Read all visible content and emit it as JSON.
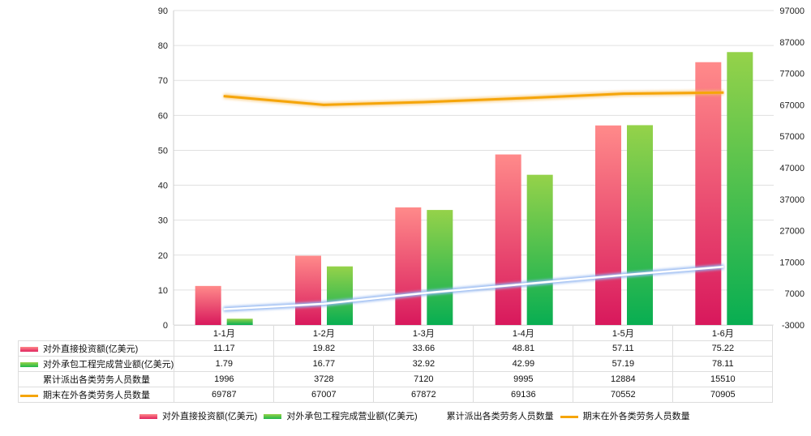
{
  "chart_data": {
    "type": "bar",
    "categories": [
      "1-1月",
      "1-2月",
      "1-3月",
      "1-4月",
      "1-5月",
      "1-6月"
    ],
    "series": [
      {
        "name": "对外直接投资额(亿美元)",
        "kind": "bar",
        "axis": "left",
        "color": "#e8476e",
        "values": [
          11.17,
          19.82,
          33.66,
          48.81,
          57.11,
          75.22
        ]
      },
      {
        "name": "对外承包工程完成营业额(亿美元)",
        "kind": "bar",
        "axis": "left",
        "color": "#4cc04a",
        "values": [
          1.79,
          16.77,
          32.92,
          42.99,
          57.19,
          78.11
        ]
      },
      {
        "name": "累计派出各类劳务人员数量",
        "kind": "line",
        "axis": "right",
        "color": "#ffffff",
        "glow": "#8fb4f0",
        "values": [
          1996,
          3728,
          7120,
          9995,
          12884,
          15510
        ]
      },
      {
        "name": "期末在外各类劳务人员数量",
        "kind": "line",
        "axis": "right",
        "color": "#f5a50a",
        "values": [
          69787,
          67007,
          67872,
          69136,
          70552,
          70905
        ]
      }
    ],
    "y_left": {
      "ylim": [
        0,
        90
      ],
      "ticks": [
        "0",
        "10",
        "20",
        "30",
        "40",
        "50",
        "60",
        "70",
        "80",
        "90"
      ]
    },
    "y_right": {
      "ylim": [
        -3000,
        97000
      ],
      "ticks": [
        "-3000",
        "7000",
        "17000",
        "27000",
        "37000",
        "47000",
        "57000",
        "67000",
        "77000",
        "87000",
        "97000"
      ]
    },
    "grid": true,
    "legend": "bottom",
    "data_table": true
  }
}
